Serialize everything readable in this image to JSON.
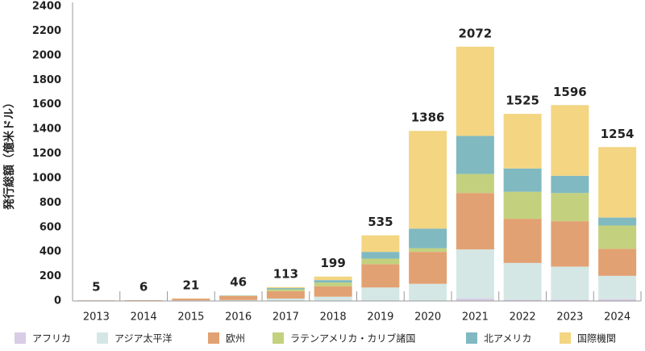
{
  "chart_data": {
    "type": "bar",
    "stacked": true,
    "y_label": "発行総額（億米ドル）",
    "categories": [
      "2013",
      "2014",
      "2015",
      "2016",
      "2017",
      "2018",
      "2019",
      "2020",
      "2021",
      "2022",
      "2023",
      "2024"
    ],
    "series": [
      {
        "name": "アフリカ",
        "color": "#d9cce6",
        "values": [
          0,
          0,
          0,
          0,
          0,
          0,
          0,
          0,
          20,
          10,
          10,
          15
        ]
      },
      {
        "name": "アジア太平洋",
        "color": "#d4e7e5",
        "values": [
          0,
          0,
          5,
          8,
          20,
          35,
          110,
          140,
          400,
          300,
          270,
          190
        ]
      },
      {
        "name": "欧州",
        "color": "#e2a172",
        "values": [
          5,
          6,
          14,
          33,
          60,
          85,
          190,
          260,
          460,
          360,
          370,
          220
        ]
      },
      {
        "name": "ラテンアメリカ・カリブ諸国",
        "color": "#c3d17f",
        "values": [
          0,
          0,
          0,
          3,
          15,
          30,
          45,
          30,
          155,
          220,
          230,
          190
        ]
      },
      {
        "name": "北アメリカ",
        "color": "#80b9c0",
        "values": [
          0,
          0,
          0,
          2,
          10,
          20,
          55,
          160,
          310,
          190,
          140,
          65
        ]
      },
      {
        "name": "国際機関",
        "color": "#f3d582",
        "values": [
          0,
          0,
          2,
          0,
          8,
          29,
          135,
          796,
          727,
          445,
          576,
          574
        ]
      }
    ],
    "totals": [
      5,
      6,
      21,
      46,
      113,
      199,
      535,
      1386,
      2072,
      1525,
      1596,
      1254
    ],
    "ylim": [
      0,
      2400
    ],
    "yticks": [
      0,
      200,
      400,
      600,
      800,
      1000,
      1200,
      1400,
      1600,
      1800,
      2000,
      2200,
      2400
    ]
  }
}
